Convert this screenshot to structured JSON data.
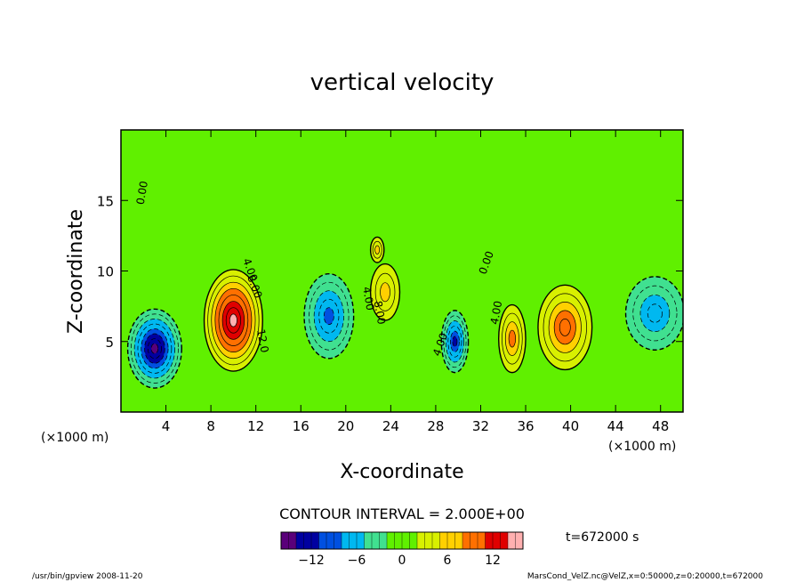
{
  "chart_data": {
    "type": "heatmap",
    "title": "vertical velocity",
    "xlabel": "X-coordinate",
    "ylabel": "Z-coordinate",
    "x_unit_left": "(×1000 m)",
    "x_unit_right": "(×1000 m)",
    "xlim": [
      0,
      50
    ],
    "ylim": [
      0,
      20
    ],
    "x_ticks": [
      4,
      8,
      12,
      16,
      20,
      24,
      28,
      32,
      36,
      40,
      44,
      48
    ],
    "y_ticks": [
      5,
      10,
      15
    ],
    "contour_interval_label": "CONTOUR INTERVAL = 2.000E+00",
    "time_label": "t=672000 s",
    "colorbar": {
      "range": [
        -16,
        16
      ],
      "ticks": [
        -12,
        -6,
        0,
        6,
        12
      ],
      "colors": [
        "#5a007a",
        "#0000a0",
        "#0050e0",
        "#00b8f0",
        "#40e090",
        "#60f000",
        "#d8f000",
        "#ffd000",
        "#ff7000",
        "#e00000",
        "#ffb0b0"
      ]
    },
    "contour_labels": [
      "0.00",
      "4.00",
      "8.00",
      "12.0",
      "4.00",
      "8.00",
      "4.00",
      "4.00",
      "0.00"
    ],
    "cells": [
      {
        "x": 3.0,
        "z": 4.5,
        "value": -16,
        "sx": 2.4,
        "sz": 2.8
      },
      {
        "x": 10.0,
        "z": 6.5,
        "value": 16,
        "sx": 2.6,
        "sz": 3.6
      },
      {
        "x": 18.5,
        "z": 6.8,
        "value": -10,
        "sx": 2.2,
        "sz": 3.0
      },
      {
        "x": 23.5,
        "z": 8.5,
        "value": 6,
        "sx": 1.3,
        "sz": 2.0
      },
      {
        "x": 29.7,
        "z": 5.0,
        "value": -12,
        "sx": 1.2,
        "sz": 2.2
      },
      {
        "x": 34.8,
        "z": 5.2,
        "value": 8,
        "sx": 1.2,
        "sz": 2.4
      },
      {
        "x": 39.5,
        "z": 6.0,
        "value": 10,
        "sx": 2.4,
        "sz": 3.0
      },
      {
        "x": 47.5,
        "z": 7.0,
        "value": -8,
        "sx": 2.6,
        "sz": 2.6
      },
      {
        "x": 22.8,
        "z": 11.5,
        "value": 6,
        "sx": 0.6,
        "sz": 0.9
      }
    ],
    "grid": false,
    "legend": "none"
  },
  "footer": {
    "left": "/usr/bin/gpview  2008-11-20",
    "right": "MarsCond_VelZ.nc@VelZ,x=0:50000,z=0:20000,t=672000"
  }
}
